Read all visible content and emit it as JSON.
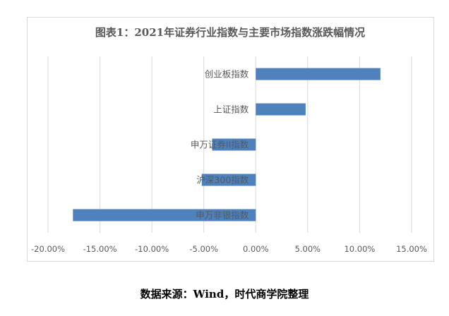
{
  "chart_data": {
    "type": "bar",
    "orientation": "horizontal",
    "title": "图表1：2021年证券行业指数与主要市场指数涨跌幅情况",
    "categories": [
      "创业板指数",
      "上证指数",
      "申万证券II指数",
      "沪深300指数",
      "申万非银指数"
    ],
    "values": [
      12.0,
      4.8,
      -4.2,
      -5.2,
      -17.6
    ],
    "xlim": [
      -20,
      15
    ],
    "xticks": [
      "-20.00%",
      "-15.00%",
      "-10.00%",
      "-5.00%",
      "0.00%",
      "5.00%",
      "10.00%",
      "15.00%"
    ],
    "grid": true,
    "bar_color": "#4f81bd"
  },
  "source_note": "数据来源：Wind，时代商学院整理"
}
